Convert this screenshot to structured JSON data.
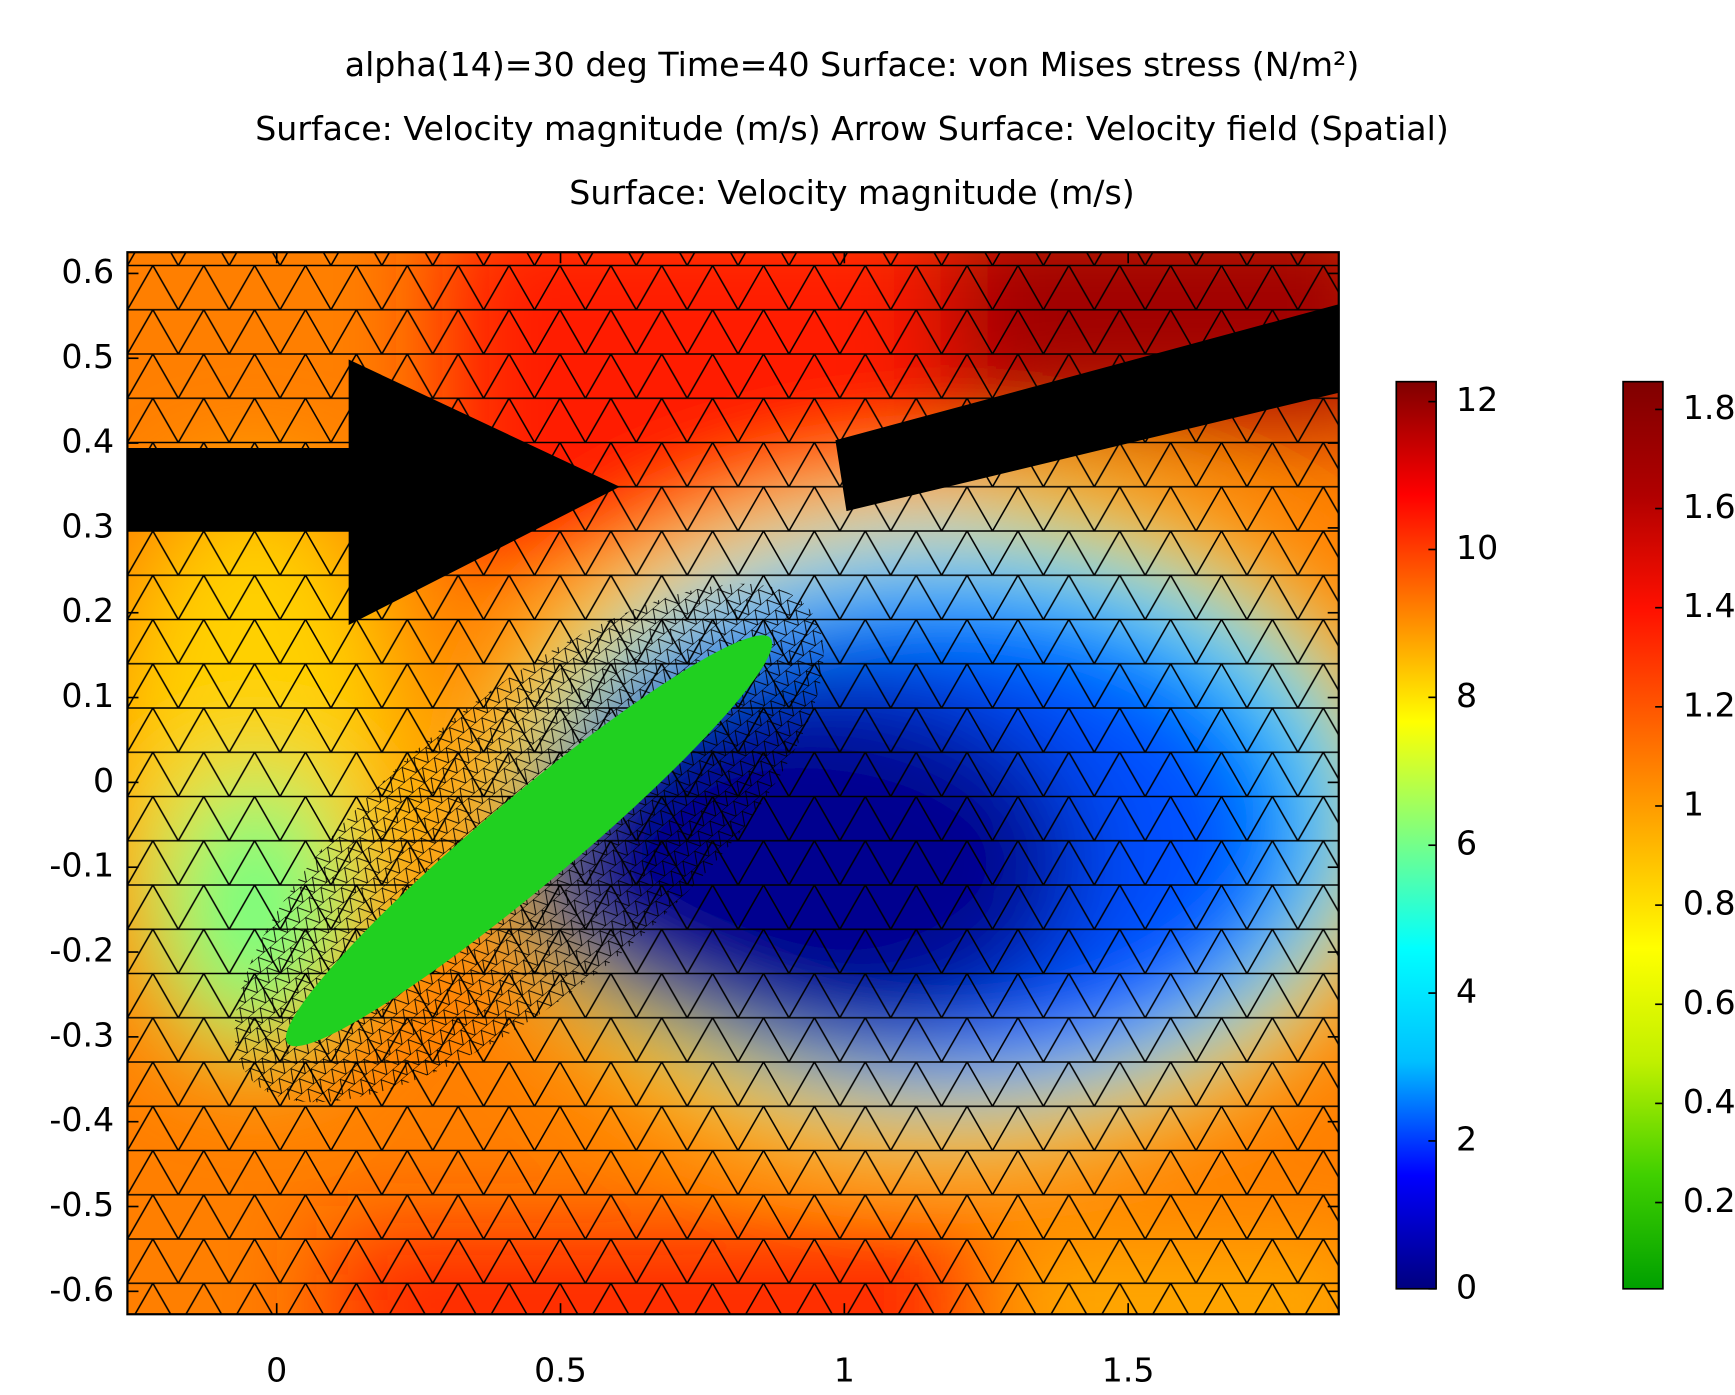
{
  "chart_data": {
    "type": "surface",
    "title": [
      "alpha(14)=30 deg Time=40   Surface: von Mises stress (N/m²)",
      "Surface: Velocity magnitude (m/s)  Arrow Surface: Velocity field (Spatial)",
      "Surface: Velocity magnitude (m/s)"
    ],
    "xlim": [
      -0.263,
      1.871
    ],
    "ylim": [
      -0.627,
      0.625
    ],
    "xticks": [
      0,
      0.5,
      1,
      1.5
    ],
    "yticks": [
      -0.6,
      -0.5,
      -0.4,
      -0.3,
      -0.2,
      -0.1,
      0,
      0.1,
      0.2,
      0.3,
      0.4,
      0.5,
      0.6
    ],
    "colorbars": [
      {
        "lim": [
          0,
          12.27
        ],
        "ticks": [
          0,
          2,
          4,
          6,
          8,
          10,
          12
        ],
        "colors": [
          "#00007f",
          "#0000ff",
          "#00bfff",
          "#00ffff",
          "#7fff7f",
          "#ffff00",
          "#ff7f00",
          "#ff0000",
          "#7f0000"
        ]
      },
      {
        "lim": [
          0.026,
          1.856
        ],
        "ticks": [
          0.2,
          0.4,
          0.6,
          0.8,
          1,
          1.2,
          1.4,
          1.6,
          1.8
        ],
        "colors": [
          "#00a000",
          "#40d000",
          "#c0f000",
          "#ffff00",
          "#ffb000",
          "#ff6000",
          "#ff1000",
          "#b00000",
          "#800000"
        ]
      }
    ]
  }
}
